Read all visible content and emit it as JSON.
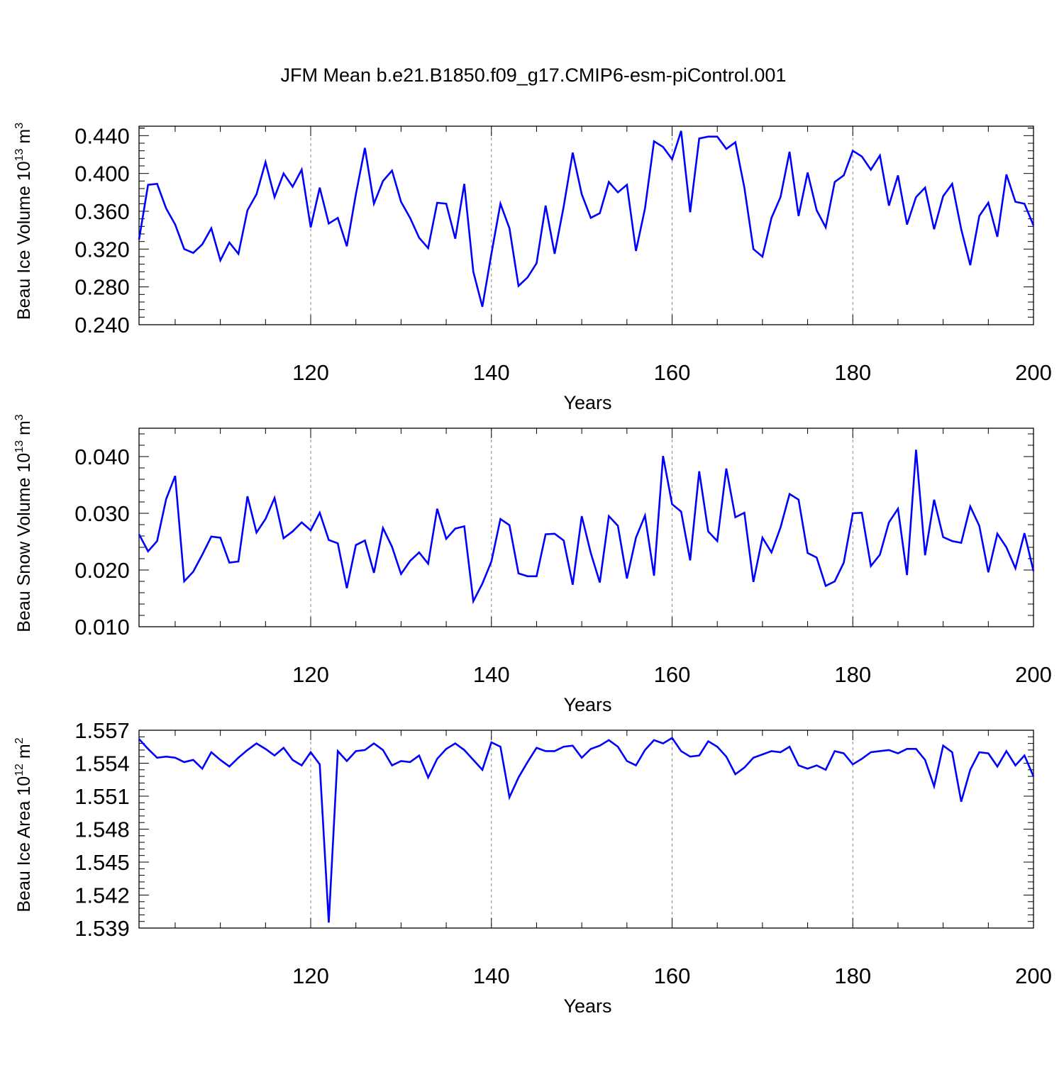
{
  "figure": {
    "title": "JFM Mean b.e21.B1850.f09_g17.CMIP6-esm-piControl.001"
  },
  "chart_data": [
    {
      "type": "line",
      "title": "",
      "ylabel": {
        "prefix": "Beau Ice Volume 10",
        "exponent": "13",
        "unit": " m",
        "unit_exp": "3"
      },
      "xlabel": "Years",
      "xlim": [
        101,
        200
      ],
      "ylim": [
        0.24,
        0.45
      ],
      "xticks": [
        120,
        140,
        160,
        180,
        200
      ],
      "xtick_labels": [
        "120",
        "140",
        "160",
        "180",
        "200"
      ],
      "yticks": [
        0.24,
        0.28,
        0.32,
        0.36,
        0.4,
        0.44
      ],
      "ytick_labels": [
        "0.240",
        "0.280",
        "0.320",
        "0.360",
        "0.400",
        "0.440"
      ],
      "grid_x": [
        120,
        140,
        160,
        180
      ],
      "line_color": "#0000ff",
      "x_start": 101,
      "values": [
        0.33,
        0.388,
        0.389,
        0.363,
        0.346,
        0.32,
        0.316,
        0.325,
        0.342,
        0.308,
        0.327,
        0.315,
        0.361,
        0.378,
        0.412,
        0.375,
        0.4,
        0.386,
        0.404,
        0.343,
        0.385,
        0.347,
        0.353,
        0.323,
        0.378,
        0.427,
        0.368,
        0.392,
        0.403,
        0.37,
        0.353,
        0.332,
        0.321,
        0.369,
        0.368,
        0.331,
        0.389,
        0.296,
        0.259,
        0.315,
        0.368,
        0.342,
        0.281,
        0.29,
        0.305,
        0.366,
        0.315,
        0.365,
        0.422,
        0.378,
        0.353,
        0.358,
        0.391,
        0.38,
        0.388,
        0.318,
        0.363,
        0.434,
        0.428,
        0.415,
        0.445,
        0.359,
        0.437,
        0.439,
        0.439,
        0.426,
        0.433,
        0.385,
        0.32,
        0.312,
        0.353,
        0.375,
        0.423,
        0.355,
        0.401,
        0.361,
        0.343,
        0.391,
        0.398,
        0.424,
        0.418,
        0.404,
        0.419,
        0.366,
        0.398,
        0.346,
        0.375,
        0.385,
        0.341,
        0.376,
        0.389,
        0.341,
        0.303,
        0.355,
        0.369,
        0.333,
        0.399,
        0.37,
        0.368,
        0.345
      ]
    },
    {
      "type": "line",
      "title": "",
      "ylabel": {
        "prefix": "Beau Snow Volume 10",
        "exponent": "13",
        "unit": " m",
        "unit_exp": "3"
      },
      "xlabel": "Years",
      "xlim": [
        101,
        200
      ],
      "ylim": [
        0.01,
        0.045
      ],
      "xticks": [
        120,
        140,
        160,
        180,
        200
      ],
      "xtick_labels": [
        "120",
        "140",
        "160",
        "180",
        "200"
      ],
      "yticks": [
        0.01,
        0.02,
        0.03,
        0.04
      ],
      "ytick_labels": [
        "0.010",
        "0.020",
        "0.030",
        "0.040"
      ],
      "grid_x": [
        120,
        140,
        160,
        180
      ],
      "line_color": "#0000ff",
      "x_start": 101,
      "values": [
        0.0263,
        0.0233,
        0.0251,
        0.0325,
        0.0366,
        0.018,
        0.0197,
        0.0227,
        0.0259,
        0.0257,
        0.0213,
        0.0215,
        0.033,
        0.0266,
        0.029,
        0.0327,
        0.0256,
        0.0268,
        0.0284,
        0.027,
        0.0301,
        0.0253,
        0.0247,
        0.0168,
        0.0244,
        0.0252,
        0.0195,
        0.0274,
        0.0241,
        0.0193,
        0.0216,
        0.0231,
        0.0211,
        0.0308,
        0.0255,
        0.0273,
        0.0277,
        0.0145,
        0.0176,
        0.0215,
        0.029,
        0.0279,
        0.0194,
        0.0189,
        0.0189,
        0.0263,
        0.0264,
        0.0252,
        0.0174,
        0.0295,
        0.023,
        0.0178,
        0.0295,
        0.0278,
        0.0185,
        0.0257,
        0.0296,
        0.019,
        0.0401,
        0.0316,
        0.0303,
        0.0217,
        0.0374,
        0.0268,
        0.0251,
        0.0379,
        0.0293,
        0.0301,
        0.0179,
        0.0257,
        0.0231,
        0.0275,
        0.0334,
        0.0324,
        0.023,
        0.0222,
        0.0172,
        0.018,
        0.0213,
        0.03,
        0.0301,
        0.0207,
        0.0227,
        0.0284,
        0.0308,
        0.0191,
        0.0412,
        0.0226,
        0.0324,
        0.0258,
        0.0251,
        0.0248,
        0.0312,
        0.0278,
        0.0196,
        0.0264,
        0.024,
        0.0203,
        0.0265,
        0.0198
      ]
    },
    {
      "type": "line",
      "title": "",
      "ylabel": {
        "prefix": "Beau Ice Area 10",
        "exponent": "12",
        "unit": " m",
        "unit_exp": "2"
      },
      "xlabel": "Years",
      "xlim": [
        101,
        200
      ],
      "ylim": [
        1.539,
        1.557
      ],
      "xticks": [
        120,
        140,
        160,
        180,
        200
      ],
      "xtick_labels": [
        "120",
        "140",
        "160",
        "180",
        "200"
      ],
      "yticks": [
        1.539,
        1.542,
        1.545,
        1.548,
        1.551,
        1.554,
        1.557
      ],
      "ytick_labels": [
        "1.539",
        "1.542",
        "1.545",
        "1.548",
        "1.551",
        "1.554",
        "1.557"
      ],
      "grid_x": [
        120,
        140,
        160,
        180
      ],
      "line_color": "#0000ff",
      "x_start": 101,
      "values": [
        1.5562,
        1.5553,
        1.5545,
        1.5546,
        1.5545,
        1.5541,
        1.5543,
        1.5535,
        1.555,
        1.5543,
        1.5537,
        1.5545,
        1.5552,
        1.5558,
        1.5553,
        1.5547,
        1.5554,
        1.5543,
        1.5538,
        1.555,
        1.5539,
        1.5395,
        1.5551,
        1.5542,
        1.5551,
        1.5552,
        1.5558,
        1.5552,
        1.5538,
        1.5542,
        1.5541,
        1.5547,
        1.5527,
        1.5544,
        1.5553,
        1.5558,
        1.5552,
        1.5543,
        1.5534,
        1.5559,
        1.5555,
        1.5509,
        1.5527,
        1.5541,
        1.5554,
        1.5551,
        1.5551,
        1.5555,
        1.5556,
        1.5545,
        1.5553,
        1.5556,
        1.5561,
        1.5555,
        1.5542,
        1.5538,
        1.5552,
        1.5561,
        1.5558,
        1.5563,
        1.5551,
        1.5546,
        1.5547,
        1.556,
        1.5555,
        1.5546,
        1.553,
        1.5536,
        1.5545,
        1.5548,
        1.5551,
        1.555,
        1.5555,
        1.5538,
        1.5535,
        1.5538,
        1.5534,
        1.5551,
        1.5549,
        1.5539,
        1.5544,
        1.555,
        1.5551,
        1.5552,
        1.5549,
        1.5553,
        1.5553,
        1.5543,
        1.5519,
        1.5556,
        1.555,
        1.5505,
        1.5534,
        1.555,
        1.5549,
        1.5537,
        1.5551,
        1.5538,
        1.5547,
        1.5528
      ]
    }
  ]
}
